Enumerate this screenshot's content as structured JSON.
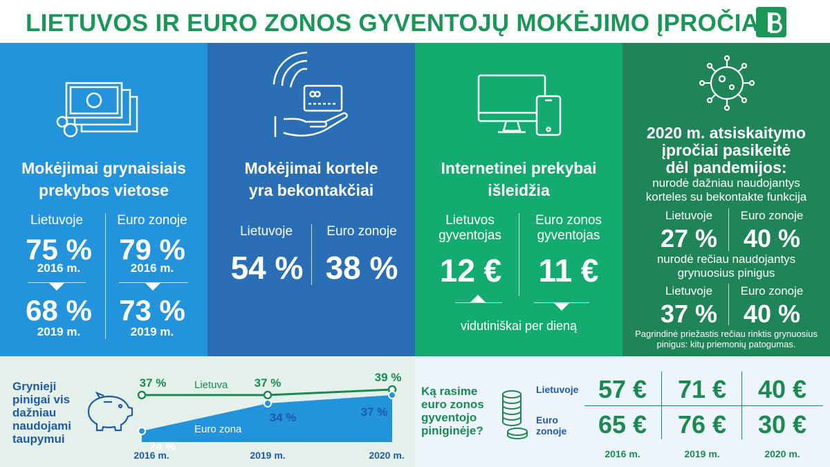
{
  "title": "LIETUVOS IR EURO ZONOS GYVENTOJŲ MOKĖJIMO ĮPROČIAI",
  "icons": [
    "cash-icon",
    "contactless-card-icon",
    "devices-icon",
    "virus-icon",
    "piggy-bank-icon",
    "coins-icon",
    "bank-logo-icon"
  ],
  "colors": {
    "green": "#1a9659",
    "blue": "#2394dc",
    "dark_blue": "#2a6fb6",
    "light_green": "#13ab70",
    "dark_green": "#1f8458"
  },
  "cash": {
    "heading_1": "Mokėjimai grynaisiais",
    "heading_2": "prekybos vietose",
    "lt_label": "Lietuvoje",
    "eu_label": "Euro zonoje",
    "lt_2016": "75 %",
    "eu_2016": "79 %",
    "year_2016": "2016 m.",
    "lt_2019": "68 %",
    "eu_2019": "73 %",
    "year_2019": "2019 m."
  },
  "card": {
    "heading_1": "Mokėjimai kortele",
    "heading_2": "yra bekontakčiai",
    "lt_label": "Lietuvoje",
    "eu_label": "Euro zonoje",
    "lt_value": "54 %",
    "eu_value": "38 %"
  },
  "online": {
    "heading_1": "Internetinei prekybai",
    "heading_2": "išleidžia",
    "lt_label_1": "Lietuvos",
    "lt_label_2": "gyventojas",
    "eu_label_1": "Euro zonos",
    "eu_label_2": "gyventojas",
    "lt_value": "12 €",
    "eu_value": "11 €",
    "note": "vidutiniškai per dieną"
  },
  "pandemic": {
    "heading_1": "2020 m. atsiskaitymo",
    "heading_2": "įpročiai pasikeitė",
    "heading_3": "dėl pandemijos:",
    "sub1_1": "nurodė dažniau naudojantys",
    "sub1_2": "korteles su bekontakte funkcija",
    "lt_label": "Lietuvoje",
    "eu_label": "Euro zonoje",
    "lt_1": "27 %",
    "eu_1": "40 %",
    "sub2_1": "nurodė rečiau naudojantys",
    "sub2_2": "grynuosius pinigus",
    "lt_2": "37 %",
    "eu_2": "40 %",
    "note_1": "Pagrindinė priežastis rečiau rinktis grynuosius",
    "note_2": "pinigus: kitų priemonių patogumas."
  },
  "savings": {
    "text_1": "Grynieji",
    "text_2": "pinigai vis",
    "text_3": "dažniau",
    "text_4": "naudojami",
    "text_5": "taupymui"
  },
  "chart_data": {
    "type": "line",
    "x": [
      "2016 m.",
      "2019 m.",
      "2020 m."
    ],
    "series": [
      {
        "name": "Lietuva",
        "values": [
          37,
          37,
          39
        ],
        "labels": [
          "37 %",
          "37 %",
          "39 %"
        ],
        "color": "#1a8a52"
      },
      {
        "name": "Euro zona",
        "values": [
          24,
          34,
          37
        ],
        "labels": [
          "24 %",
          "34 %",
          "37 %"
        ],
        "color": "#2394dc"
      }
    ],
    "ylim": [
      20,
      41
    ]
  },
  "wallet": {
    "text_1": "Ką rasime",
    "text_2": "euro zonos",
    "text_3": "gyventojo",
    "text_4": "piniginėje?",
    "lt_label": "Lietuvoje",
    "eu_label_1": "Euro",
    "eu_label_2": "zonoje",
    "lt_values": [
      "57 €",
      "71 €",
      "40 €"
    ],
    "eu_values": [
      "65 €",
      "76 €",
      "30 €"
    ],
    "years": [
      "2016 m.",
      "2019 m.",
      "2020 m."
    ]
  }
}
